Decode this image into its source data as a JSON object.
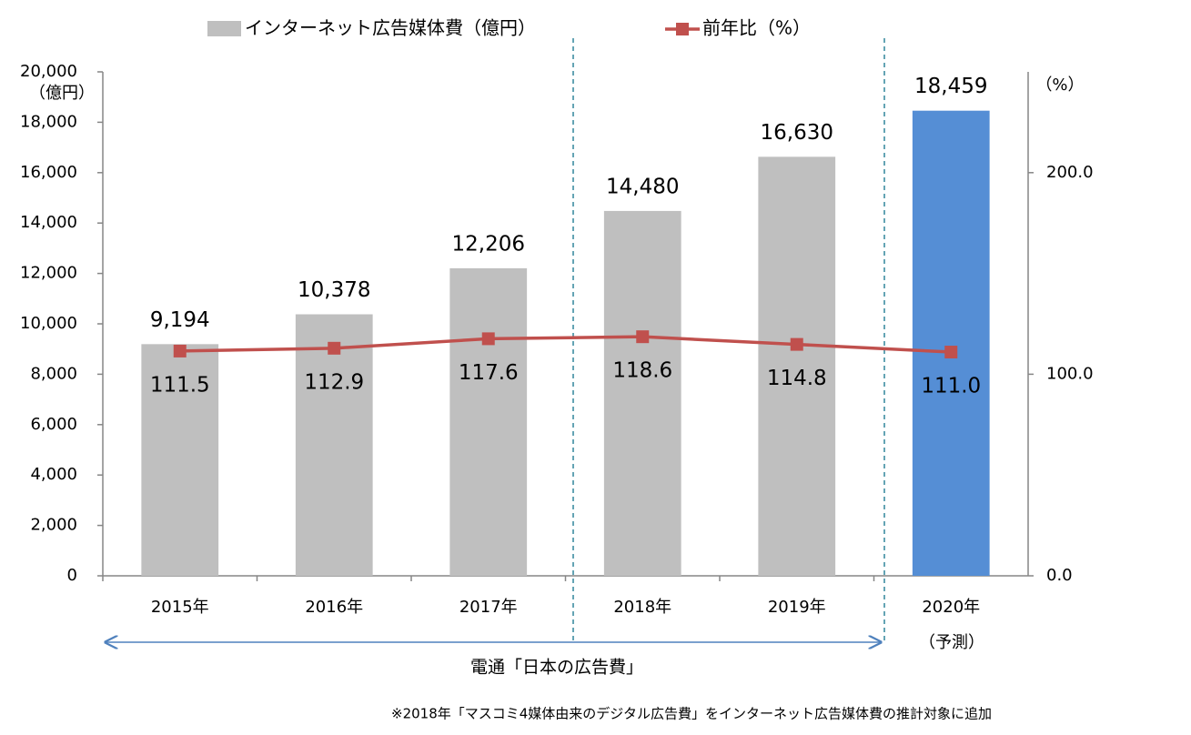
{
  "chart_data": {
    "type": "bar_line",
    "categories": [
      "2015年",
      "2016年",
      "2017年",
      "2018年",
      "2019年",
      "2020年"
    ],
    "category_note": "（予測）",
    "y_label": "（億円）",
    "y2_label": "（%）",
    "series": [
      {
        "name": "インターネット広告媒体費（億円）",
        "type": "bar",
        "colors": [
          "#bfbfbf",
          "#bfbfbf",
          "#bfbfbf",
          "#bfbfbf",
          "#bfbfbf",
          "#558ed5"
        ],
        "color": "#bfbfbf",
        "values": [
          9194,
          10378,
          12206,
          14480,
          16630,
          18459
        ],
        "value_labels": [
          "9,194",
          "10,378",
          "12,206",
          "14,480",
          "16,630",
          "18,459"
        ]
      },
      {
        "name": "前年比（%）",
        "type": "line",
        "axis": "y2",
        "color": "#c0504d",
        "values": [
          111.5,
          112.9,
          117.6,
          118.6,
          114.8,
          111.0
        ],
        "value_labels": [
          "111.5",
          "112.9",
          "117.6",
          "118.6",
          "114.8",
          "111.0"
        ]
      }
    ],
    "ylim": [
      0,
      20000
    ],
    "yticks": [
      0,
      {
        "value": 2000,
        "label": "2,000"
      },
      {
        "value": 4000,
        "label": "4,000"
      },
      {
        "value": 6000,
        "label": "6,000"
      },
      {
        "value": 8000,
        "label": "8,000"
      },
      {
        "value": 10000,
        "label": "10,000"
      },
      {
        "value": 12000,
        "label": "12,000"
      },
      {
        "value": 14000,
        "label": "14,000"
      },
      {
        "value": 16000,
        "label": "16,000"
      },
      {
        "value": 18000,
        "label": "18,000"
      },
      {
        "value": 20000,
        "label": "20,000"
      }
    ],
    "y2lim": [
      0,
      250
    ],
    "y2ticks": [
      {
        "value": 0,
        "label": "0.0"
      },
      {
        "value": 100,
        "label": "100.0"
      },
      {
        "value": 200,
        "label": "200.0"
      }
    ],
    "source_annotation": "電通「日本の広告費」",
    "footnote": "※2018年「マスコミ4媒体由来のデジタル広告費」をインターネット広告媒体費の推計対象に追加"
  }
}
